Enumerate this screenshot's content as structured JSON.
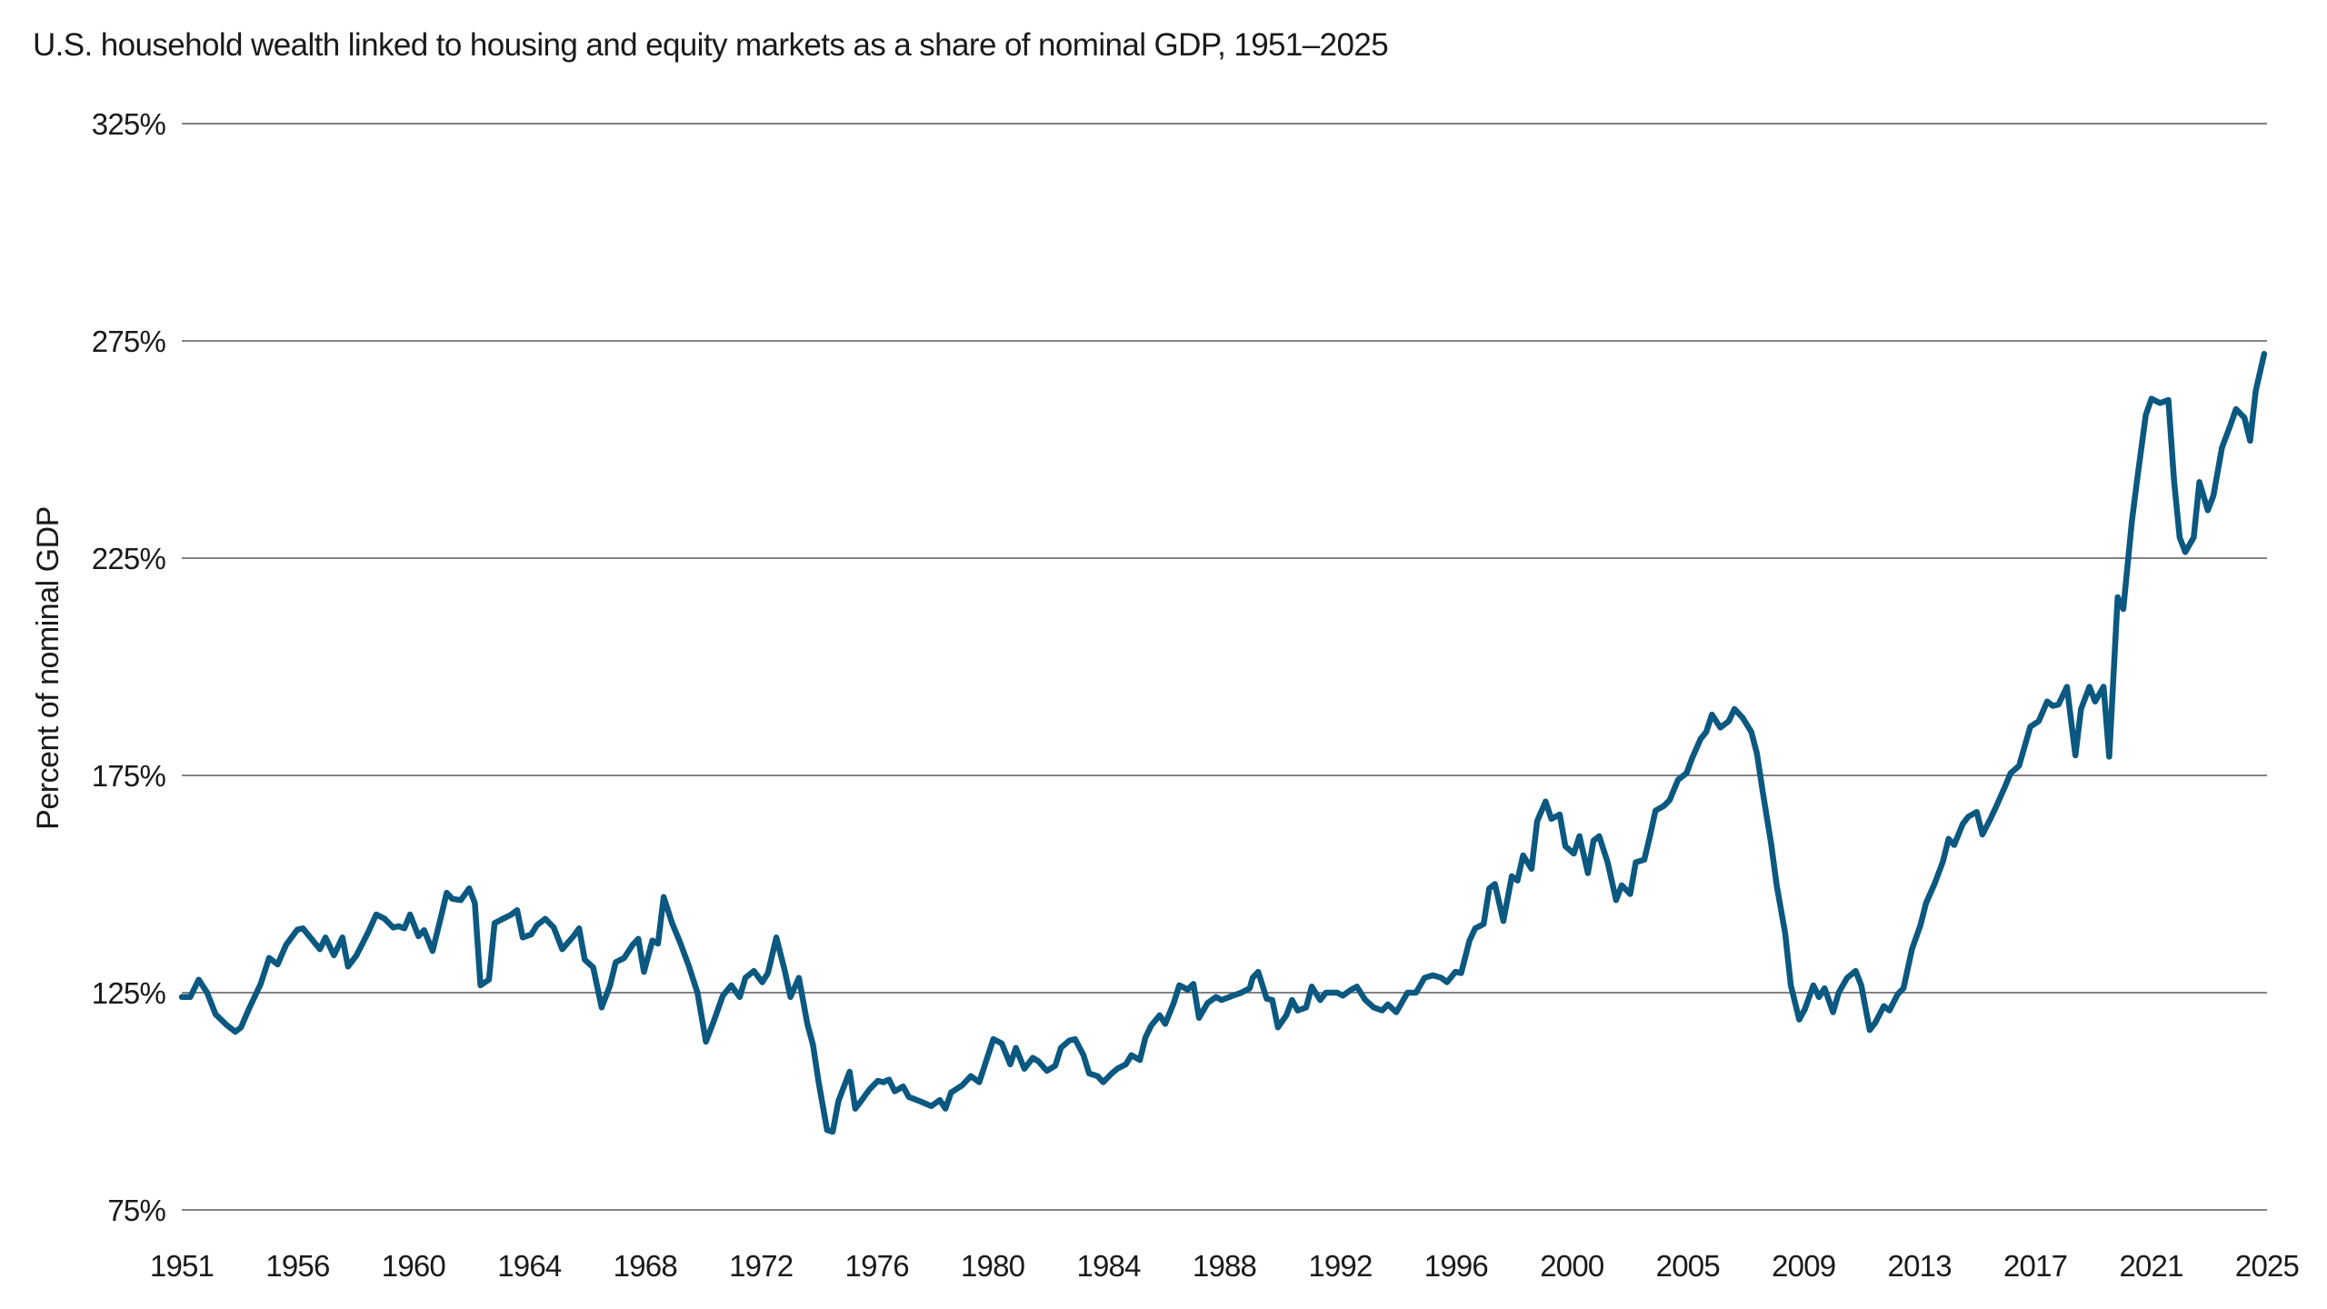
{
  "chart_data": {
    "type": "line",
    "title": "U.S. household wealth linked to housing and equity markets as a share of nominal GDP, 1951–2025",
    "xlabel": "",
    "ylabel": "Percent of nominal GDP",
    "xlim": [
      1951,
      2025
    ],
    "ylim": [
      75,
      325
    ],
    "y_ticks": [
      75,
      125,
      175,
      225,
      275,
      325
    ],
    "y_tick_labels": [
      "75%",
      "125%",
      "175%",
      "225%",
      "275%",
      "325%"
    ],
    "x_tick_labels": [
      "1951",
      "1956",
      "1960",
      "1964",
      "1968",
      "1972",
      "1976",
      "1980",
      "1984",
      "1988",
      "1992",
      "1996",
      "2000",
      "2005",
      "2009",
      "2013",
      "2017",
      "2021",
      "2025"
    ],
    "grid": "horizontal",
    "legend": "none",
    "line_color": "#0b5880",
    "grid_color": "#5a5a5a",
    "series": [
      {
        "points": [
          [
            1951.0,
            124
          ],
          [
            1951.3,
            124
          ],
          [
            1951.6,
            128
          ],
          [
            1951.9,
            125
          ],
          [
            1952.2,
            120
          ],
          [
            1952.6,
            117.5
          ],
          [
            1952.9,
            116
          ],
          [
            1953.1,
            117
          ],
          [
            1953.4,
            121.5
          ],
          [
            1953.8,
            127
          ],
          [
            1954.1,
            133
          ],
          [
            1954.4,
            131.5
          ],
          [
            1954.7,
            136
          ],
          [
            1955.1,
            139.5
          ],
          [
            1955.3,
            139.8
          ],
          [
            1955.9,
            135
          ],
          [
            1956.1,
            137.7
          ],
          [
            1956.4,
            133.6
          ],
          [
            1956.7,
            137.7
          ],
          [
            1956.9,
            131
          ],
          [
            1957.2,
            133.6
          ],
          [
            1957.6,
            138.7
          ],
          [
            1957.9,
            143
          ],
          [
            1958.2,
            142
          ],
          [
            1958.5,
            140
          ],
          [
            1958.7,
            140.3
          ],
          [
            1958.9,
            139.8
          ],
          [
            1959.1,
            143
          ],
          [
            1959.4,
            138
          ],
          [
            1959.6,
            139.4
          ],
          [
            1959.9,
            134.6
          ],
          [
            1960.2,
            142.5
          ],
          [
            1960.4,
            148
          ],
          [
            1960.6,
            146.6
          ],
          [
            1960.9,
            146.3
          ],
          [
            1961.2,
            149
          ],
          [
            1961.4,
            145.6
          ],
          [
            1961.6,
            126.7
          ],
          [
            1961.9,
            128
          ],
          [
            1962.1,
            141
          ],
          [
            1962.4,
            142
          ],
          [
            1962.7,
            143
          ],
          [
            1962.9,
            144
          ],
          [
            1963.1,
            137.7
          ],
          [
            1963.4,
            138.4
          ],
          [
            1963.6,
            140.5
          ],
          [
            1963.9,
            142
          ],
          [
            1964.2,
            140
          ],
          [
            1964.5,
            135
          ],
          [
            1964.9,
            138
          ],
          [
            1965.1,
            139.8
          ],
          [
            1965.3,
            132.6
          ],
          [
            1965.6,
            130.8
          ],
          [
            1965.9,
            121.6
          ],
          [
            1966.2,
            126.7
          ],
          [
            1966.4,
            132
          ],
          [
            1966.7,
            133
          ],
          [
            1967.0,
            136
          ],
          [
            1967.2,
            137.4
          ],
          [
            1967.4,
            129.8
          ],
          [
            1967.7,
            137
          ],
          [
            1967.9,
            136.3
          ],
          [
            1968.1,
            147
          ],
          [
            1968.4,
            141
          ],
          [
            1968.7,
            136.3
          ],
          [
            1969.0,
            131
          ],
          [
            1969.3,
            125
          ],
          [
            1969.6,
            113.7
          ],
          [
            1969.9,
            118.8
          ],
          [
            1970.2,
            124.3
          ],
          [
            1970.5,
            126.7
          ],
          [
            1970.8,
            124
          ],
          [
            1971.0,
            128.4
          ],
          [
            1971.3,
            130
          ],
          [
            1971.6,
            127.4
          ],
          [
            1971.8,
            129.5
          ],
          [
            1972.1,
            137.7
          ],
          [
            1972.4,
            130
          ],
          [
            1972.6,
            124
          ],
          [
            1972.9,
            128.4
          ],
          [
            1973.2,
            117.8
          ],
          [
            1973.4,
            113
          ],
          [
            1973.6,
            104.4
          ],
          [
            1973.9,
            93.4
          ],
          [
            1974.1,
            93
          ],
          [
            1974.3,
            100
          ],
          [
            1974.7,
            106.8
          ],
          [
            1974.9,
            98.3
          ],
          [
            1975.1,
            100
          ],
          [
            1975.4,
            102.7
          ],
          [
            1975.7,
            104.7
          ],
          [
            1975.9,
            104.4
          ],
          [
            1976.1,
            105
          ],
          [
            1976.3,
            102.3
          ],
          [
            1976.6,
            103.4
          ],
          [
            1976.8,
            101
          ],
          [
            1977.2,
            100
          ],
          [
            1977.6,
            98.9
          ],
          [
            1977.9,
            100.3
          ],
          [
            1978.1,
            98.3
          ],
          [
            1978.3,
            102
          ],
          [
            1978.7,
            103.7
          ],
          [
            1979.0,
            105.8
          ],
          [
            1979.3,
            104.4
          ],
          [
            1979.8,
            114.3
          ],
          [
            1980.1,
            113.3
          ],
          [
            1980.4,
            108.5
          ],
          [
            1980.6,
            112.3
          ],
          [
            1980.9,
            107.5
          ],
          [
            1981.2,
            110
          ],
          [
            1981.4,
            109.2
          ],
          [
            1981.7,
            107
          ],
          [
            1982.0,
            108.2
          ],
          [
            1982.2,
            112.3
          ],
          [
            1982.5,
            114
          ],
          [
            1982.7,
            114.3
          ],
          [
            1983.0,
            110.6
          ],
          [
            1983.2,
            106.4
          ],
          [
            1983.5,
            105.8
          ],
          [
            1983.7,
            104.4
          ],
          [
            1984.0,
            106.4
          ],
          [
            1984.2,
            107.5
          ],
          [
            1984.5,
            108.5
          ],
          [
            1984.7,
            110.6
          ],
          [
            1985.0,
            109.5
          ],
          [
            1985.2,
            114.7
          ],
          [
            1985.4,
            117.4
          ],
          [
            1985.7,
            119.8
          ],
          [
            1985.9,
            117.8
          ],
          [
            1986.2,
            122.6
          ],
          [
            1986.4,
            126.7
          ],
          [
            1986.7,
            125.7
          ],
          [
            1986.9,
            127
          ],
          [
            1987.1,
            119.2
          ],
          [
            1987.4,
            122.6
          ],
          [
            1987.7,
            124
          ],
          [
            1987.9,
            123.3
          ],
          [
            1988.3,
            124.3
          ],
          [
            1988.6,
            125
          ],
          [
            1988.9,
            126
          ],
          [
            1989.0,
            128.4
          ],
          [
            1989.2,
            129.8
          ],
          [
            1989.5,
            123.6
          ],
          [
            1989.7,
            123.3
          ],
          [
            1989.9,
            117
          ],
          [
            1990.2,
            119.8
          ],
          [
            1990.4,
            123.3
          ],
          [
            1990.6,
            120.9
          ],
          [
            1990.9,
            121.6
          ],
          [
            1991.1,
            126.4
          ],
          [
            1991.4,
            123.3
          ],
          [
            1991.6,
            125
          ],
          [
            1992.0,
            125
          ],
          [
            1992.2,
            124.3
          ],
          [
            1992.5,
            125.7
          ],
          [
            1992.7,
            126.4
          ],
          [
            1993.0,
            123.3
          ],
          [
            1993.3,
            121.6
          ],
          [
            1993.6,
            120.9
          ],
          [
            1993.8,
            122.3
          ],
          [
            1994.1,
            120.5
          ],
          [
            1994.5,
            125
          ],
          [
            1994.8,
            125
          ],
          [
            1995.1,
            128.4
          ],
          [
            1995.4,
            129
          ],
          [
            1995.7,
            128.4
          ],
          [
            1995.9,
            127.4
          ],
          [
            1996.2,
            129.8
          ],
          [
            1996.4,
            129.5
          ],
          [
            1996.7,
            137
          ],
          [
            1996.9,
            139.8
          ],
          [
            1997.2,
            140.8
          ],
          [
            1997.4,
            149
          ],
          [
            1997.6,
            150
          ],
          [
            1997.9,
            141.5
          ],
          [
            1998.2,
            151.8
          ],
          [
            1998.4,
            150.8
          ],
          [
            1998.6,
            156.6
          ],
          [
            1998.9,
            153.5
          ],
          [
            1999.1,
            164.5
          ],
          [
            1999.4,
            169
          ],
          [
            1999.6,
            165
          ],
          [
            1999.9,
            166
          ],
          [
            2000.1,
            158.7
          ],
          [
            2000.4,
            157
          ],
          [
            2000.6,
            161
          ],
          [
            2000.9,
            152.5
          ],
          [
            2001.1,
            160
          ],
          [
            2001.3,
            161
          ],
          [
            2001.6,
            155
          ],
          [
            2001.9,
            146.3
          ],
          [
            2002.1,
            149.7
          ],
          [
            2002.4,
            147.7
          ],
          [
            2002.6,
            155
          ],
          [
            2002.9,
            155.6
          ],
          [
            2003.1,
            161
          ],
          [
            2003.3,
            166.9
          ],
          [
            2003.6,
            168
          ],
          [
            2003.8,
            169.3
          ],
          [
            2004.1,
            174
          ],
          [
            2004.4,
            175.5
          ],
          [
            2004.6,
            179
          ],
          [
            2004.9,
            183.4
          ],
          [
            2005.1,
            185
          ],
          [
            2005.3,
            189
          ],
          [
            2005.6,
            186
          ],
          [
            2005.9,
            187.5
          ],
          [
            2006.1,
            190.3
          ],
          [
            2006.4,
            188.2
          ],
          [
            2006.7,
            185
          ],
          [
            2006.9,
            180
          ],
          [
            2007.1,
            171.4
          ],
          [
            2007.4,
            159.4
          ],
          [
            2007.6,
            149.7
          ],
          [
            2007.9,
            138.7
          ],
          [
            2008.1,
            126.7
          ],
          [
            2008.4,
            118.8
          ],
          [
            2008.6,
            121.2
          ],
          [
            2008.9,
            126.7
          ],
          [
            2009.1,
            124
          ],
          [
            2009.3,
            126
          ],
          [
            2009.6,
            120.5
          ],
          [
            2009.8,
            125
          ],
          [
            2010.1,
            128.4
          ],
          [
            2010.4,
            130
          ],
          [
            2010.6,
            126.7
          ],
          [
            2010.9,
            116.4
          ],
          [
            2011.1,
            118.1
          ],
          [
            2011.4,
            121.9
          ],
          [
            2011.6,
            120.9
          ],
          [
            2011.9,
            124.7
          ],
          [
            2012.1,
            126
          ],
          [
            2012.4,
            135
          ],
          [
            2012.7,
            140.5
          ],
          [
            2012.9,
            145.6
          ],
          [
            2013.2,
            150
          ],
          [
            2013.5,
            155.2
          ],
          [
            2013.7,
            160.4
          ],
          [
            2013.9,
            159
          ],
          [
            2014.2,
            163.8
          ],
          [
            2014.4,
            165.5
          ],
          [
            2014.7,
            166.6
          ],
          [
            2014.9,
            161.4
          ],
          [
            2015.2,
            165.2
          ],
          [
            2015.4,
            168
          ],
          [
            2015.7,
            172.4
          ],
          [
            2015.9,
            175.5
          ],
          [
            2016.2,
            177.2
          ],
          [
            2016.4,
            181.7
          ],
          [
            2016.6,
            186.2
          ],
          [
            2016.9,
            187.5
          ],
          [
            2017.2,
            192
          ],
          [
            2017.4,
            191
          ],
          [
            2017.6,
            191.3
          ],
          [
            2017.9,
            195.4
          ],
          [
            2018.2,
            179.6
          ],
          [
            2018.4,
            190.3
          ],
          [
            2018.7,
            195.4
          ],
          [
            2018.9,
            192
          ],
          [
            2019.2,
            195.4
          ],
          [
            2019.4,
            179.3
          ],
          [
            2019.7,
            216
          ],
          [
            2019.9,
            213.3
          ],
          [
            2020.2,
            233.2
          ],
          [
            2020.4,
            243.5
          ],
          [
            2020.7,
            258
          ],
          [
            2020.9,
            261.7
          ],
          [
            2021.2,
            260.7
          ],
          [
            2021.5,
            261.4
          ],
          [
            2021.7,
            242.9
          ],
          [
            2021.9,
            229.8
          ],
          [
            2022.1,
            226.4
          ],
          [
            2022.4,
            229.8
          ],
          [
            2022.6,
            242.5
          ],
          [
            2022.9,
            236
          ],
          [
            2023.1,
            239.4
          ],
          [
            2023.4,
            250.4
          ],
          [
            2023.7,
            255.6
          ],
          [
            2023.9,
            259.3
          ],
          [
            2024.2,
            257.3
          ],
          [
            2024.4,
            252
          ],
          [
            2024.6,
            263.5
          ],
          [
            2024.9,
            272
          ]
        ]
      }
    ]
  }
}
